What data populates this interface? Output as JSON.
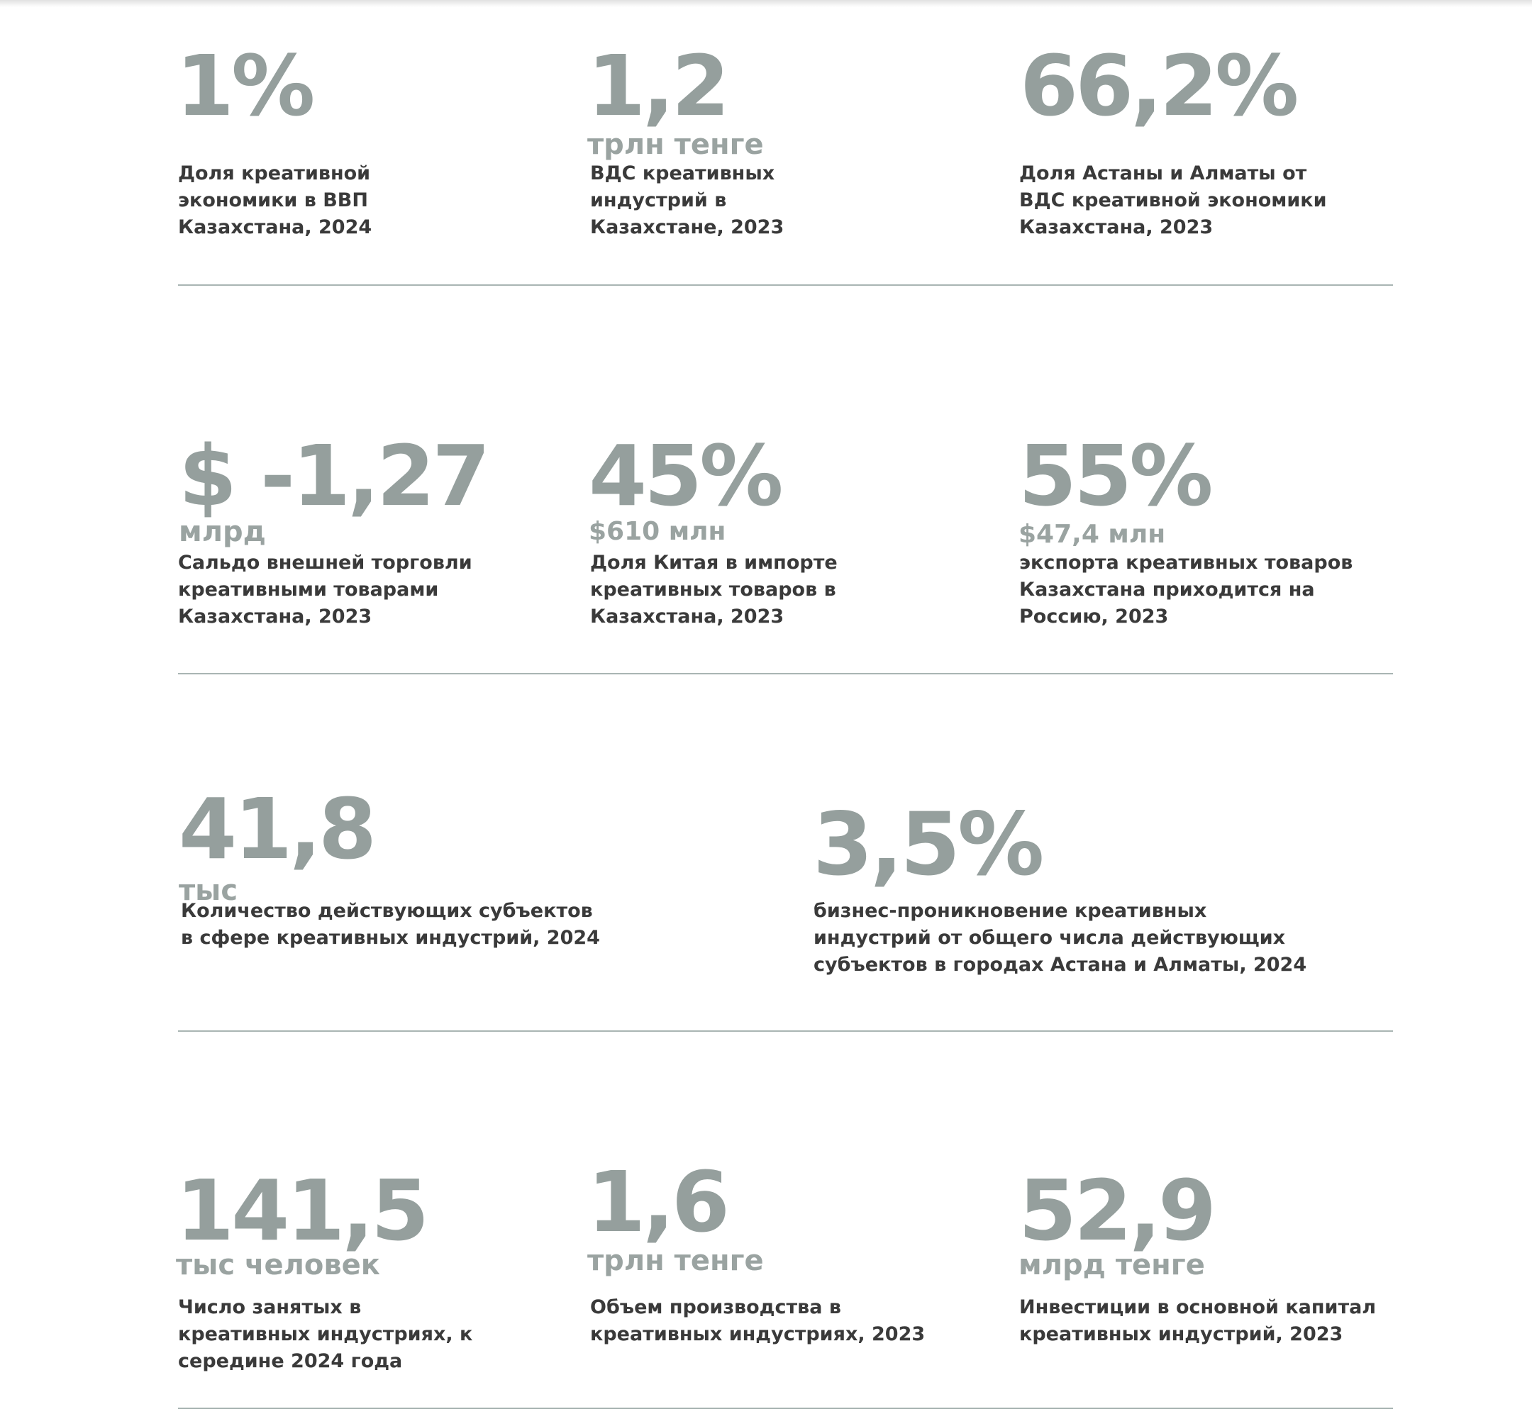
{
  "stats": [
    {
      "value": "1%",
      "unit": "",
      "desc": "Доля креативной\nэкономики в ВВП\nКазахстана, 2024"
    },
    {
      "value": "1,2",
      "unit": "трлн тенге",
      "desc": "ВДС креативных\nиндустрий в\nКазахстане, 2023"
    },
    {
      "value": "66,2%",
      "unit": "",
      "desc": "Доля Астаны и Алматы от\nВДС креативной экономики\nКазахстана, 2023"
    },
    {
      "value": "$ -1,27",
      "unit": "млрд",
      "desc": "Сальдо внешней торговли\nкреативными товарами\nКазахстана, 2023"
    },
    {
      "value": "45%",
      "unit": "$610 млн",
      "desc": "Доля Китая в импорте\nкреативных товаров в\nКазахстана, 2023"
    },
    {
      "value": "55%",
      "unit": "$47,4 млн",
      "desc": "экспорта креативных товаров\nКазахстана приходится на\nРоссию, 2023"
    },
    {
      "value": "41,8",
      "unit": "тыс",
      "desc": "Количество действующих субъектов\nв сфере креативных индустрий, 2024"
    },
    {
      "value": "3,5%",
      "unit": "",
      "desc": "бизнес-проникновение креативных\nиндустрий от общего числа действующих\nсубъектов в городах Астана и Алматы, 2024"
    },
    {
      "value": "141,5",
      "unit": "тыс человек",
      "desc": "Число занятых в\nкреативных индустриях, к\nсередине 2024 года"
    },
    {
      "value": "1,6",
      "unit": "трлн тенге",
      "desc": "Объем производства в\nкреативных индустриях, 2023"
    },
    {
      "value": "52,9",
      "unit": "млрд тенге",
      "desc": "Инвестиции в основной капитал\nкреативных индустрий, 2023"
    }
  ]
}
